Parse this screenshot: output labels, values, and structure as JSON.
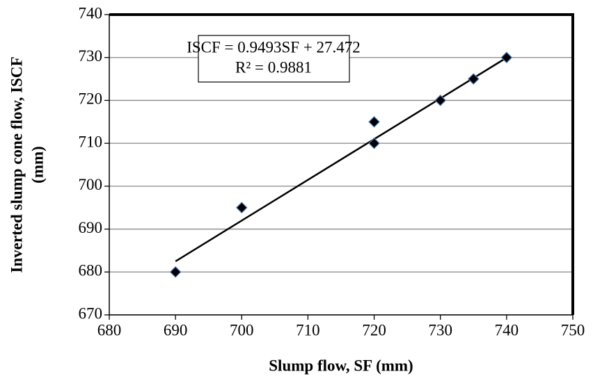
{
  "chart_data": {
    "type": "scatter",
    "x_label": "Slump flow, SF (mm)",
    "y_label": [
      "Inverted slump cone flow, ISCF",
      "(mm)"
    ],
    "series": [
      {
        "x": [
          690,
          700,
          720,
          720,
          730,
          735,
          740
        ],
        "values": [
          680,
          695,
          715,
          710,
          720,
          725,
          730
        ],
        "color": "#000000",
        "edge_color": "#4f81bd"
      }
    ],
    "trendline": {
      "slope": 0.9493,
      "intercept": 27.472,
      "color": "#000000"
    },
    "annotation": [
      "ISCF = 0.9493SF + 27.472",
      "R² = 0.9881"
    ],
    "xlim": [
      680,
      750
    ],
    "xticks": [
      680,
      690,
      700,
      710,
      720,
      730,
      740,
      750
    ],
    "ylim": [
      670,
      740
    ],
    "yticks": [
      670,
      680,
      690,
      700,
      710,
      720,
      730,
      740
    ],
    "grid": true
  }
}
